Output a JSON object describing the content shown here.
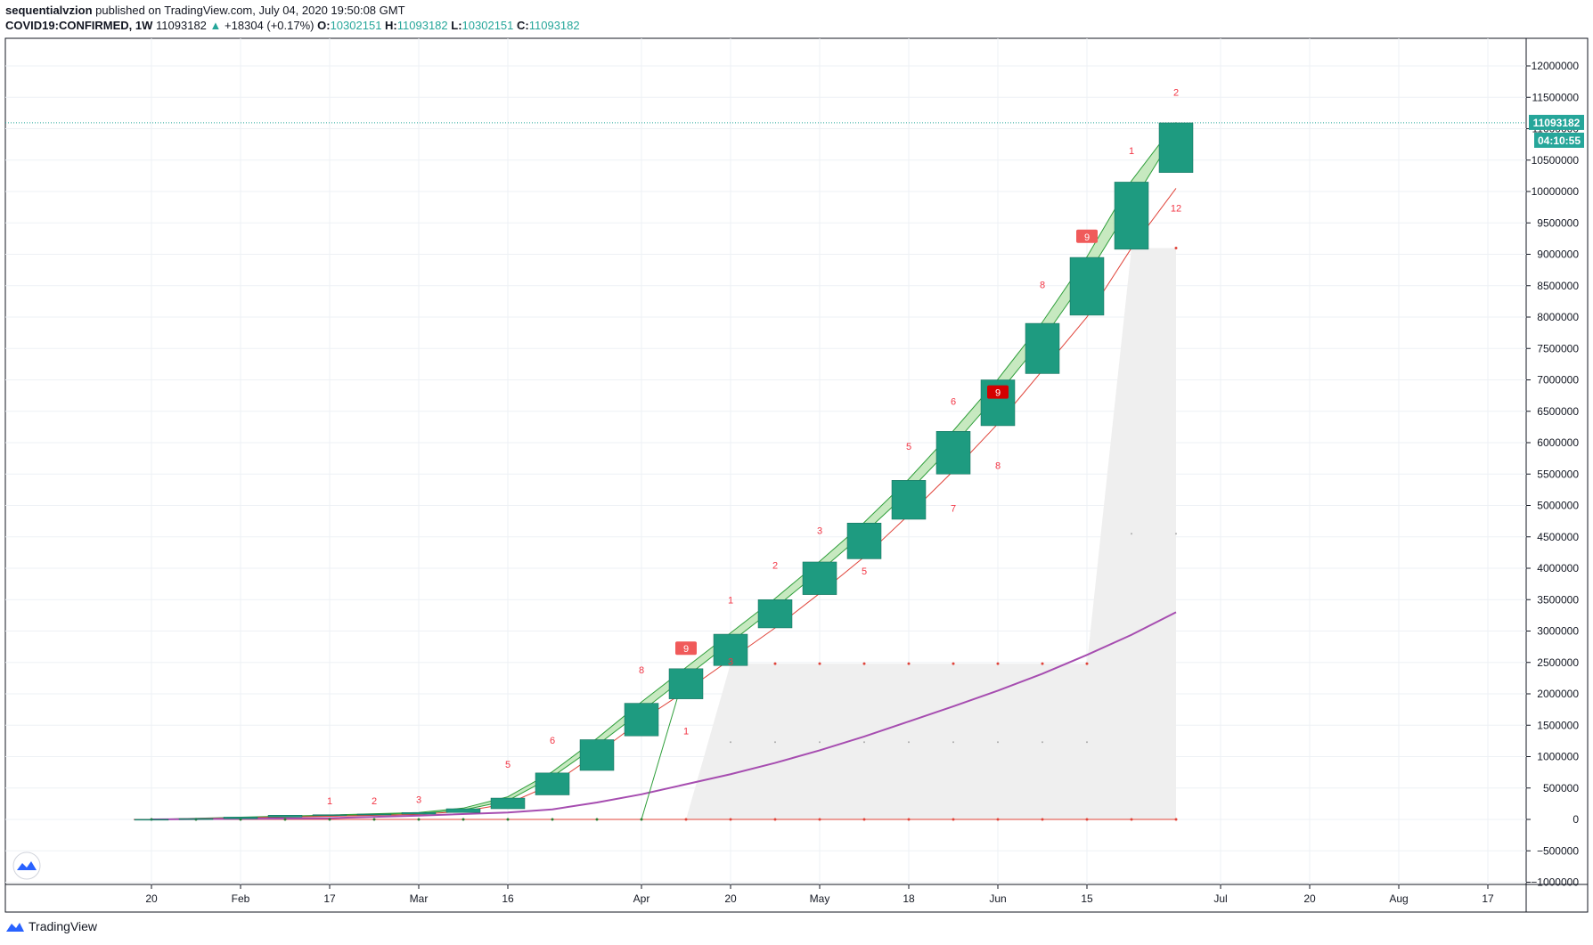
{
  "header": {
    "author": "sequentialvzion",
    "published_text": "published on TradingView.com, July 04, 2020 19:50:08 GMT",
    "symbol": "COVID19:CONFIRMED, 1W",
    "last": "11093182",
    "change": "+18304 (+0.17%)",
    "o_label": "O:",
    "o_value": "10302151",
    "h_label": "H:",
    "h_value": "11093182",
    "l_label": "L:",
    "l_value": "10302151",
    "c_label": "C:",
    "c_value": "11093182"
  },
  "price_badge": "11093182",
  "countdown_badge": "04:10:55",
  "footer": {
    "brand": "TradingView"
  },
  "colors": {
    "candle": "#1e9b80",
    "candle_stroke": "#126b58",
    "band_fill": "#b9e3b0",
    "band_line": "#2e9e3a",
    "red_line": "#e0443a",
    "ma_line": "#a64db0",
    "shade": "#efefef",
    "grid": "#eef1f5",
    "count_text": "#f23645",
    "price_line": "#26a69a"
  },
  "chart_data": {
    "type": "candlestick",
    "interval": "1W",
    "ylim": [
      -1000000,
      12000000
    ],
    "y_ticks": [
      -1000000,
      -500000,
      0,
      500000,
      1000000,
      1500000,
      2000000,
      2500000,
      3000000,
      3500000,
      4000000,
      4500000,
      5000000,
      5500000,
      6000000,
      6500000,
      7000000,
      7500000,
      8000000,
      8500000,
      9000000,
      9500000,
      10000000,
      10500000,
      11000000,
      11500000,
      12000000
    ],
    "y_tick_labels": [
      "−1000000",
      "−500000",
      "0",
      "500000",
      "1000000",
      "1500000",
      "2000000",
      "2500000",
      "3000000",
      "3500000",
      "4000000",
      "4500000",
      "5000000",
      "5500000",
      "6000000",
      "6500000",
      "7000000",
      "7500000",
      "8000000",
      "8500000",
      "9000000",
      "9500000",
      "10000000",
      "10500000",
      "11000000",
      "11500000",
      "12000000"
    ],
    "x_ticks": [
      "20",
      "Feb",
      "17",
      "Mar",
      "16",
      "Apr",
      "20",
      "May",
      "18",
      "Jun",
      "15",
      "Jul",
      "20",
      "Aug",
      "17"
    ],
    "x_tick_index": [
      0,
      2,
      4,
      6,
      8,
      11,
      13,
      15,
      17,
      19,
      21,
      24,
      26,
      28,
      30
    ],
    "candles": [
      {
        "i": 0,
        "o": 0,
        "h": 2000,
        "l": 0,
        "c": 2000
      },
      {
        "i": 1,
        "o": 2000,
        "h": 12000,
        "l": 2000,
        "c": 12000
      },
      {
        "i": 2,
        "o": 12000,
        "h": 37000,
        "l": 12000,
        "c": 37000
      },
      {
        "i": 3,
        "o": 37000,
        "h": 67000,
        "l": 37000,
        "c": 67000
      },
      {
        "i": 4,
        "o": 67000,
        "h": 75000,
        "l": 67000,
        "c": 75000
      },
      {
        "i": 5,
        "o": 75000,
        "h": 85000,
        "l": 75000,
        "c": 85000
      },
      {
        "i": 6,
        "o": 85000,
        "h": 110000,
        "l": 85000,
        "c": 110000
      },
      {
        "i": 7,
        "o": 110000,
        "h": 170000,
        "l": 110000,
        "c": 170000
      },
      {
        "i": 8,
        "o": 170000,
        "h": 340000,
        "l": 170000,
        "c": 340000
      },
      {
        "i": 9,
        "o": 390000,
        "h": 740000,
        "l": 390000,
        "c": 740000
      },
      {
        "i": 10,
        "o": 780000,
        "h": 1270000,
        "l": 780000,
        "c": 1270000
      },
      {
        "i": 11,
        "o": 1330000,
        "h": 1850000,
        "l": 1330000,
        "c": 1850000
      },
      {
        "i": 12,
        "o": 1920000,
        "h": 2400000,
        "l": 1920000,
        "c": 2400000
      },
      {
        "i": 13,
        "o": 2450000,
        "h": 2950000,
        "l": 2450000,
        "c": 2950000
      },
      {
        "i": 14,
        "o": 3050000,
        "h": 3500000,
        "l": 3050000,
        "c": 3500000
      },
      {
        "i": 15,
        "o": 3580000,
        "h": 4100000,
        "l": 3580000,
        "c": 4100000
      },
      {
        "i": 16,
        "o": 4150000,
        "h": 4720000,
        "l": 4150000,
        "c": 4720000
      },
      {
        "i": 17,
        "o": 4780000,
        "h": 5400000,
        "l": 4780000,
        "c": 5400000
      },
      {
        "i": 18,
        "o": 5500000,
        "h": 6180000,
        "l": 5500000,
        "c": 6180000
      },
      {
        "i": 19,
        "o": 6270000,
        "h": 7000000,
        "l": 6270000,
        "c": 7000000
      },
      {
        "i": 20,
        "o": 7100000,
        "h": 7900000,
        "l": 7100000,
        "c": 7900000
      },
      {
        "i": 21,
        "o": 8030000,
        "h": 8950000,
        "l": 8030000,
        "c": 8950000
      },
      {
        "i": 22,
        "o": 9080000,
        "h": 10150000,
        "l": 9080000,
        "c": 10150000
      },
      {
        "i": 23,
        "o": 10302151,
        "h": 11093182,
        "l": 10302151,
        "c": 11093182
      }
    ],
    "ma_line": [
      [
        0,
        0
      ],
      [
        4,
        20000
      ],
      [
        6,
        60000
      ],
      [
        8,
        110000
      ],
      [
        9,
        160000
      ],
      [
        10,
        270000
      ],
      [
        11,
        400000
      ],
      [
        12,
        560000
      ],
      [
        13,
        720000
      ],
      [
        14,
        900000
      ],
      [
        15,
        1100000
      ],
      [
        16,
        1320000
      ],
      [
        17,
        1560000
      ],
      [
        18,
        1800000
      ],
      [
        19,
        2050000
      ],
      [
        20,
        2320000
      ],
      [
        21,
        2620000
      ],
      [
        22,
        2940000
      ],
      [
        23,
        3300000
      ]
    ],
    "band_upper": [
      [
        0,
        0
      ],
      [
        4,
        70000
      ],
      [
        6,
        110000
      ],
      [
        7,
        180000
      ],
      [
        8,
        360000
      ],
      [
        9,
        760000
      ],
      [
        10,
        1290000
      ],
      [
        11,
        1870000
      ],
      [
        12,
        2420000
      ],
      [
        13,
        2970000
      ],
      [
        14,
        3520000
      ],
      [
        15,
        4110000
      ],
      [
        16,
        4730000
      ],
      [
        17,
        5420000
      ],
      [
        18,
        6190000
      ],
      [
        19,
        7010000
      ],
      [
        20,
        7920000
      ],
      [
        21,
        8960000
      ],
      [
        22,
        10170000
      ],
      [
        23,
        11100000
      ]
    ],
    "band_lower": [
      [
        0,
        0
      ],
      [
        4,
        60000
      ],
      [
        6,
        95000
      ],
      [
        7,
        150000
      ],
      [
        8,
        300000
      ],
      [
        9,
        680000
      ],
      [
        10,
        1180000
      ],
      [
        11,
        1720000
      ],
      [
        12,
        2270000
      ],
      [
        13,
        2820000
      ],
      [
        14,
        3370000
      ],
      [
        15,
        3950000
      ],
      [
        16,
        4560000
      ],
      [
        17,
        5220000
      ],
      [
        18,
        5960000
      ],
      [
        19,
        6770000
      ],
      [
        20,
        7640000
      ],
      [
        21,
        8650000
      ],
      [
        22,
        9800000
      ],
      [
        23,
        10950000
      ]
    ],
    "red_line": [
      [
        0,
        0
      ],
      [
        4,
        50000
      ],
      [
        6,
        80000
      ],
      [
        7,
        130000
      ],
      [
        8,
        250000
      ],
      [
        9,
        560000
      ],
      [
        10,
        1050000
      ],
      [
        11,
        1580000
      ],
      [
        12,
        2050000
      ],
      [
        13,
        2550000
      ],
      [
        14,
        3050000
      ],
      [
        15,
        3600000
      ],
      [
        16,
        4180000
      ],
      [
        17,
        4850000
      ],
      [
        18,
        5550000
      ],
      [
        19,
        6300000
      ],
      [
        20,
        7150000
      ],
      [
        21,
        8000000
      ],
      [
        22,
        9100000
      ],
      [
        23,
        10050000
      ]
    ],
    "green_vertical": [
      [
        11,
        0
      ],
      [
        12,
        2400000
      ]
    ],
    "shade_polygon": [
      [
        12,
        0
      ],
      [
        13,
        2480000
      ],
      [
        21,
        2480000
      ],
      [
        22,
        9100000
      ],
      [
        23,
        9100000
      ],
      [
        23,
        0
      ]
    ],
    "counts": [
      {
        "i": 4,
        "v": 300000,
        "t": "1"
      },
      {
        "i": 5,
        "v": 300000,
        "t": "2"
      },
      {
        "i": 6,
        "v": 320000,
        "t": "3"
      },
      {
        "i": 8,
        "v": 880000,
        "t": "5"
      },
      {
        "i": 9,
        "v": 1260000,
        "t": "6"
      },
      {
        "i": 11,
        "v": 2380000,
        "t": "8"
      },
      {
        "i": 13,
        "v": 3500000,
        "t": "1"
      },
      {
        "i": 14,
        "v": 4050000,
        "t": "2"
      },
      {
        "i": 15,
        "v": 4600000,
        "t": "3"
      },
      {
        "i": 17,
        "v": 5940000,
        "t": "5"
      },
      {
        "i": 18,
        "v": 6660000,
        "t": "6"
      },
      {
        "i": 20,
        "v": 8520000,
        "t": "8"
      },
      {
        "i": 22,
        "v": 10650000,
        "t": "1"
      },
      {
        "i": 23,
        "v": 11580000,
        "t": "2"
      },
      {
        "i": 12,
        "v": 1410000,
        "t": "1"
      },
      {
        "i": 13,
        "v": 2520000,
        "t": "3"
      },
      {
        "i": 16,
        "v": 3960000,
        "t": "5"
      },
      {
        "i": 18,
        "v": 4960000,
        "t": "7"
      },
      {
        "i": 19,
        "v": 5640000,
        "t": "8"
      },
      {
        "i": 23,
        "v": 9740000,
        "t": "12"
      }
    ],
    "markers": [
      {
        "i": 12,
        "v": 2720000,
        "t": "9",
        "style": "light"
      },
      {
        "i": 21,
        "v": 9280000,
        "t": "9",
        "style": "light"
      },
      {
        "i": 19,
        "v": 6800000,
        "t": "9",
        "style": "dark"
      }
    ]
  }
}
